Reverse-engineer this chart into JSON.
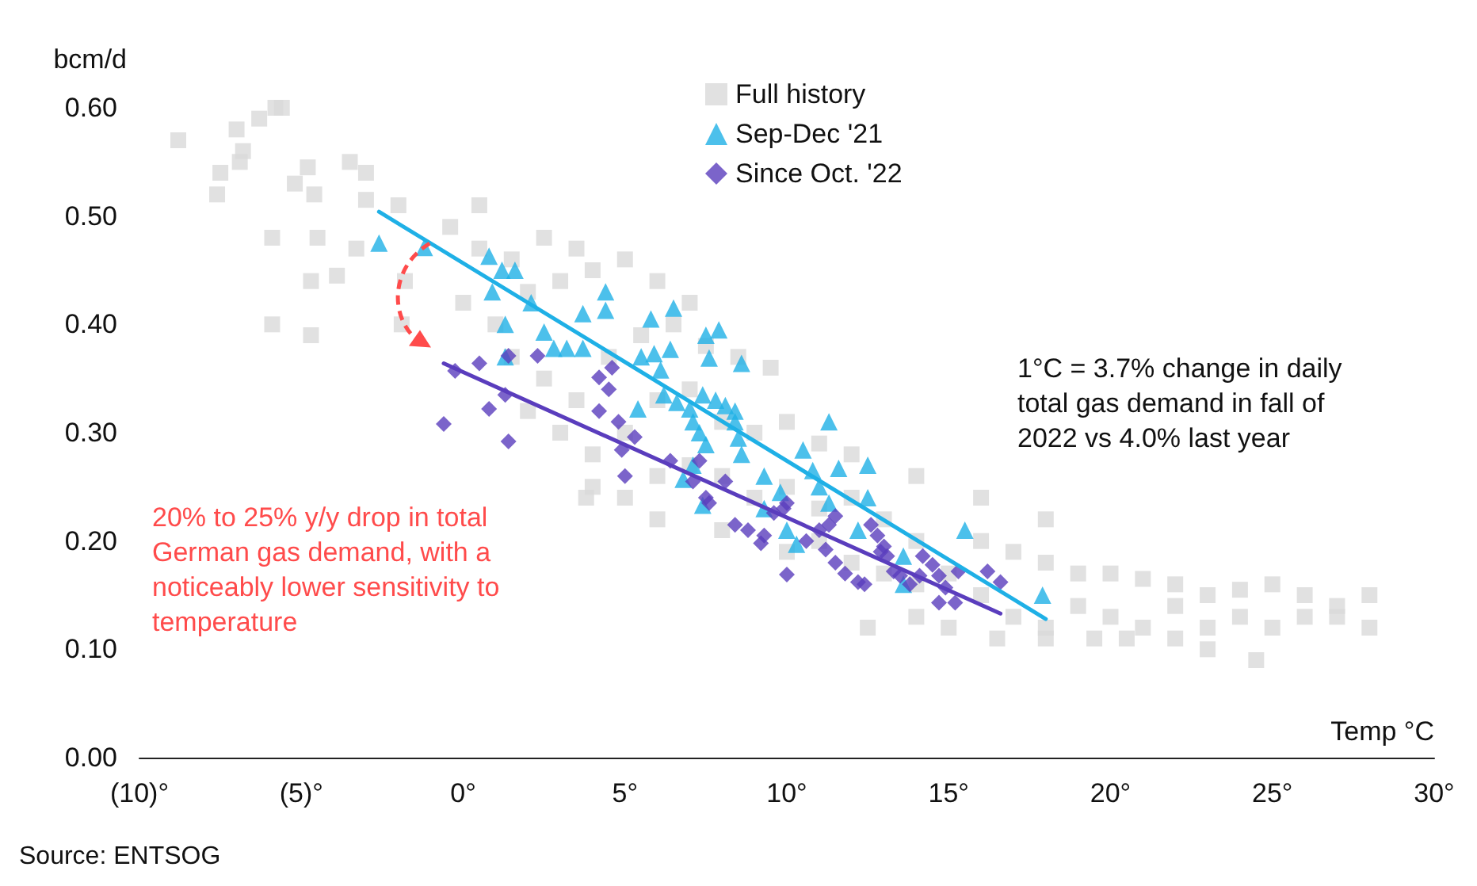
{
  "chart_data": {
    "type": "scatter",
    "xlabel": "Temp °C",
    "ylabel": "bcm/d",
    "xlim": [
      -10,
      30
    ],
    "xticks": [
      {
        "value": -10,
        "label": "(10)°"
      },
      {
        "value": -5,
        "label": "(5)°"
      },
      {
        "value": 0,
        "label": "0°"
      },
      {
        "value": 5,
        "label": "5°"
      },
      {
        "value": 10,
        "label": "10°"
      },
      {
        "value": 15,
        "label": "15°"
      },
      {
        "value": 20,
        "label": "20°"
      },
      {
        "value": 25,
        "label": "25°"
      },
      {
        "value": 30,
        "label": "30°"
      }
    ],
    "ylim": [
      0,
      0.6
    ],
    "yticks": [
      {
        "value": 0,
        "label": "0.00"
      },
      {
        "value": 0.1,
        "label": "0.10"
      },
      {
        "value": 0.2,
        "label": "0.20"
      },
      {
        "value": 0.3,
        "label": "0.30"
      },
      {
        "value": 0.4,
        "label": "0.40"
      },
      {
        "value": 0.5,
        "label": "0.50"
      },
      {
        "value": 0.6,
        "label": "0.60"
      }
    ],
    "grid": false,
    "legend": "top",
    "series": [
      {
        "name": "Full history",
        "color": "#d9d9d9",
        "marker": "square",
        "x": [
          -8.8,
          -7.0,
          -6.3,
          -5.8,
          -5.6,
          -6.9,
          -7.5,
          -7.6,
          -6.8,
          -5.2,
          -4.6,
          -4.8,
          -3.5,
          -3.0,
          -3.0,
          -2.0,
          -3.3,
          -5.9,
          -4.5,
          -4.7,
          -3.9,
          -5.9,
          -4.7,
          -1.8,
          -1.9,
          -0.4,
          0.5,
          0.5,
          1.5,
          2.5,
          3.5,
          0.0,
          1.0,
          2.0,
          3.0,
          4.0,
          5.0,
          6.0,
          7.0,
          1.5,
          2.5,
          3.5,
          4.5,
          5.5,
          6.5,
          7.5,
          8.5,
          9.5,
          2.0,
          3.0,
          4.0,
          5.0,
          6.0,
          7.0,
          8.0,
          9.0,
          10.0,
          11.0,
          4.0,
          5.0,
          6.0,
          7.0,
          8.0,
          9.0,
          10.0,
          11.0,
          12.0,
          13.0,
          14.0,
          3.8,
          6.0,
          8.0,
          10.0,
          11.0,
          12.0,
          13.0,
          14.0,
          15.0,
          16.0,
          17.0,
          18.0,
          19.0,
          20.0,
          21.0,
          22.0,
          23.0,
          24.0,
          25.0,
          26.0,
          27.0,
          28.0,
          16.0,
          17.0,
          18.0,
          19.0,
          20.0,
          21.0,
          22.0,
          23.0,
          24.0,
          25.0,
          26.0,
          27.0,
          28.0,
          15.0,
          16.5,
          18.0,
          19.5,
          20.5,
          22.0,
          23.0,
          24.5,
          12.5,
          14.0,
          12.0,
          14.0,
          16.0,
          18.0
        ],
        "values": [
          0.57,
          0.58,
          0.59,
          0.6,
          0.6,
          0.55,
          0.54,
          0.52,
          0.56,
          0.53,
          0.52,
          0.545,
          0.55,
          0.54,
          0.515,
          0.51,
          0.47,
          0.48,
          0.48,
          0.44,
          0.445,
          0.4,
          0.39,
          0.44,
          0.4,
          0.49,
          0.51,
          0.47,
          0.46,
          0.48,
          0.47,
          0.42,
          0.4,
          0.43,
          0.44,
          0.45,
          0.46,
          0.44,
          0.42,
          0.37,
          0.35,
          0.33,
          0.37,
          0.39,
          0.4,
          0.38,
          0.37,
          0.36,
          0.32,
          0.3,
          0.28,
          0.3,
          0.33,
          0.34,
          0.31,
          0.3,
          0.31,
          0.29,
          0.25,
          0.24,
          0.26,
          0.27,
          0.26,
          0.24,
          0.25,
          0.23,
          0.24,
          0.22,
          0.2,
          0.24,
          0.22,
          0.21,
          0.19,
          0.2,
          0.18,
          0.17,
          0.16,
          0.17,
          0.2,
          0.19,
          0.18,
          0.17,
          0.17,
          0.165,
          0.16,
          0.15,
          0.155,
          0.16,
          0.15,
          0.14,
          0.15,
          0.15,
          0.13,
          0.12,
          0.14,
          0.13,
          0.12,
          0.14,
          0.12,
          0.13,
          0.12,
          0.13,
          0.13,
          0.12,
          0.12,
          0.11,
          0.11,
          0.11,
          0.11,
          0.11,
          0.1,
          0.09,
          0.12,
          0.13,
          0.28,
          0.26,
          0.24,
          0.22
        ]
      },
      {
        "name": "Sep-Dec '21",
        "color": "#1fb0e6",
        "marker": "triangle",
        "x": [
          -2.6,
          -1.2,
          0.8,
          1.2,
          1.6,
          0.9,
          1.3,
          1.3,
          2.1,
          2.5,
          2.8,
          3.2,
          3.7,
          3.7,
          4.4,
          4.4,
          5.8,
          6.5,
          5.5,
          5.9,
          6.4,
          6.1,
          6.2,
          6.6,
          7.0,
          5.4,
          7.5,
          7.9,
          7.6,
          8.6,
          7.4,
          7.8,
          8.1,
          8.4,
          7.1,
          7.3,
          8.4,
          8.5,
          8.6,
          7.5,
          7.1,
          6.8,
          9.3,
          9.8,
          9.3,
          7.4,
          10.5,
          10.8,
          11.0,
          11.3,
          11.6,
          12.5,
          12.5,
          11.3,
          10.0,
          10.3,
          12.2,
          13.6,
          15.5,
          17.9,
          13.6
        ],
        "values": [
          0.475,
          0.471,
          0.463,
          0.45,
          0.45,
          0.43,
          0.4,
          0.37,
          0.42,
          0.393,
          0.378,
          0.378,
          0.378,
          0.41,
          0.413,
          0.43,
          0.405,
          0.415,
          0.37,
          0.373,
          0.377,
          0.358,
          0.335,
          0.328,
          0.322,
          0.322,
          0.39,
          0.395,
          0.369,
          0.364,
          0.335,
          0.33,
          0.325,
          0.32,
          0.31,
          0.3,
          0.31,
          0.295,
          0.28,
          0.289,
          0.27,
          0.257,
          0.26,
          0.245,
          0.23,
          0.233,
          0.284,
          0.265,
          0.25,
          0.31,
          0.267,
          0.27,
          0.24,
          0.235,
          0.21,
          0.197,
          0.21,
          0.186,
          0.21,
          0.15,
          0.16
        ]
      },
      {
        "name": "Since Oct. '22",
        "color": "#5a3dbd",
        "marker": "diamond",
        "x": [
          -0.25,
          -0.6,
          0.5,
          1.4,
          2.3,
          1.3,
          0.8,
          1.4,
          4.2,
          4.2,
          4.6,
          4.5,
          4.8,
          5.3,
          4.9,
          5.0,
          6.4,
          7.3,
          7.1,
          7.5,
          7.6,
          8.1,
          8.4,
          8.8,
          9.3,
          9.2,
          9.6,
          9.9,
          10.0,
          10.0,
          10.6,
          11.0,
          11.3,
          11.5,
          11.2,
          11.5,
          11.8,
          12.2,
          12.4,
          12.6,
          12.8,
          13.0,
          13.1,
          12.9,
          13.3,
          13.5,
          14.2,
          14.1,
          14.5,
          14.7,
          14.9,
          14.7,
          15.2,
          15.3,
          16.2,
          16.6,
          13.8
        ],
        "values": [
          0.357,
          0.308,
          0.364,
          0.371,
          0.371,
          0.335,
          0.322,
          0.292,
          0.351,
          0.32,
          0.36,
          0.34,
          0.31,
          0.296,
          0.284,
          0.26,
          0.274,
          0.274,
          0.255,
          0.24,
          0.235,
          0.255,
          0.215,
          0.21,
          0.205,
          0.198,
          0.226,
          0.23,
          0.235,
          0.169,
          0.2,
          0.21,
          0.215,
          0.223,
          0.192,
          0.18,
          0.17,
          0.162,
          0.16,
          0.215,
          0.205,
          0.195,
          0.186,
          0.19,
          0.172,
          0.168,
          0.186,
          0.168,
          0.178,
          0.168,
          0.157,
          0.143,
          0.143,
          0.172,
          0.172,
          0.162,
          0.16
        ]
      },
      {
        "type": "line",
        "color": "#1fb0e6",
        "marker": "none",
        "x": [
          -2.6,
          18.0
        ],
        "values": [
          0.504,
          0.128
        ]
      },
      {
        "type": "line",
        "color": "#5a3dbd",
        "marker": "none",
        "x": [
          -0.6,
          16.6
        ],
        "values": [
          0.364,
          0.133
        ]
      }
    ],
    "annotations": [
      "1°C = 3.7% change in daily total gas demand in fall of 2022 vs 4.0% last year",
      "20% to 25% y/y drop in total German gas demand, with a noticeably lower sensitivity to temperature",
      "Source: ENTSOG"
    ]
  }
}
